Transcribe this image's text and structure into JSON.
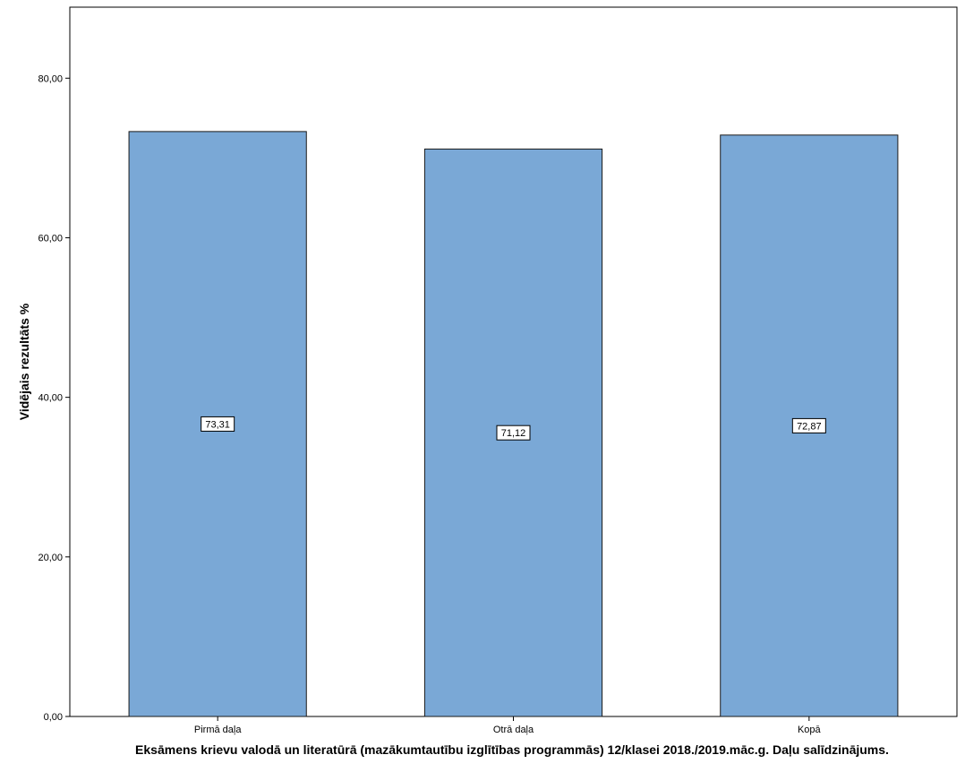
{
  "chart_data": {
    "type": "bar",
    "categories": [
      "Pirmā daļa",
      "Otrā daļa",
      "Kopā"
    ],
    "values": [
      73.31,
      71.12,
      72.87
    ],
    "value_labels": [
      "73,31",
      "71,12",
      "72,87"
    ],
    "xlabel": "Eksāmens krievu valodā un literatūrā (mazākumtautību izglītības programmās) 12/klasei 2018./2019.māc.g. Daļu salīdzinājums.",
    "ylabel": "Vidējais rezultāts %",
    "ylim": [
      0,
      88.9
    ],
    "yticks": [
      0,
      20,
      40,
      60,
      80
    ],
    "ytick_labels": [
      "0,00",
      "20,00",
      "40,00",
      "60,00",
      "80,00"
    ],
    "grid": false,
    "colors": {
      "bar_fill": "#7aa8d6",
      "bar_stroke": "#1a1a1a",
      "axis": "#000000"
    }
  }
}
